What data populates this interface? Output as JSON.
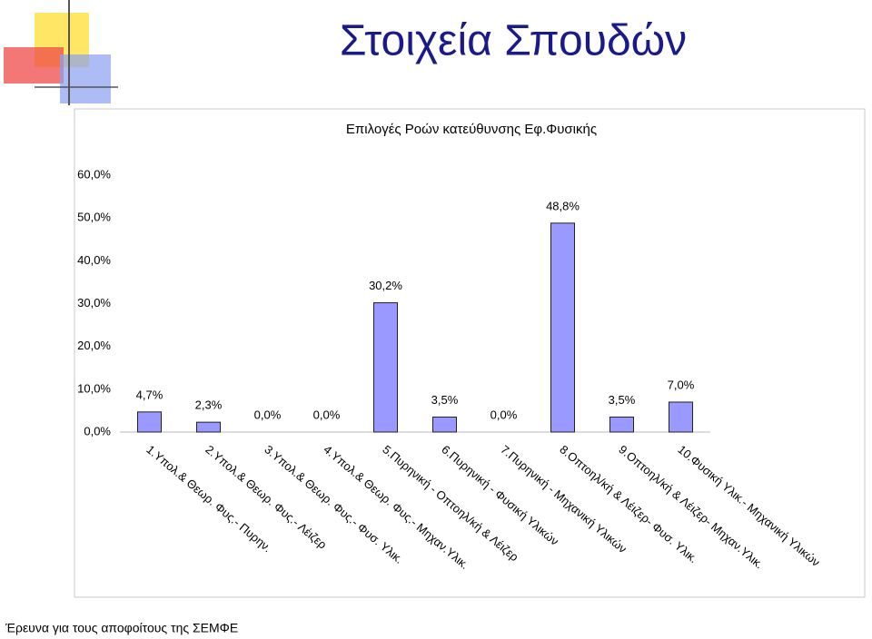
{
  "slide_title": "Στοιχεία Σπουδών",
  "footer": "Έρευνα για τους αποφοίτους της ΣΕΜΦΕ",
  "chart_data": {
    "type": "bar",
    "title": "Επιλογές Ροών κατεύθυνσης Εφ.Φυσικής",
    "categories": [
      "1.Υπολ.& Θεωρ. Φυς.- Πυρην.",
      "2.Υπολ.& Θεωρ. Φυς.- Λέιζερ",
      "3.Υπολ.& Θεωρ. Φυς.- Φυσ. Υλικ.",
      "4.Υπολ.& Θεωρ. Φυς.- Μηχαν.Υλικ.",
      "5.Πυρηνική - Οπτοηλ/κή & Λέιζερ",
      "6.Πυρηνική - Φυσική Υλικών",
      "7.Πυρηνική - Μηχανική Υλικών",
      "8.Οπτοηλ/κή & Λέιζερ- Φυσ. Υλικ.",
      "9.Οπτοηλ/κή & Λέιζερ- Μηχαν.Υλικ.",
      "10.Φυσική Υλικ.- Μηχανική Υλικών"
    ],
    "values": [
      4.7,
      2.3,
      0,
      0,
      30.2,
      3.5,
      0,
      48.8,
      3.5,
      7.0
    ],
    "value_labels": [
      "4,7%",
      "2,3%",
      "0,0%",
      "0,0%",
      "30,2%",
      "3,5%",
      "0,0%",
      "48,8%",
      "3,5%",
      "7,0%"
    ],
    "color": "#9999ff",
    "ylim": [
      0,
      60
    ],
    "yticks": [
      {
        "value": 0,
        "label": "0,0%"
      },
      {
        "value": 10,
        "label": "10,0%"
      },
      {
        "value": 20,
        "label": "20,0%"
      },
      {
        "value": 30,
        "label": "30,0%"
      },
      {
        "value": 40,
        "label": "40,0%"
      },
      {
        "value": 50,
        "label": "50,0%"
      },
      {
        "value": 60,
        "label": "60,0%"
      }
    ],
    "grid": false
  }
}
